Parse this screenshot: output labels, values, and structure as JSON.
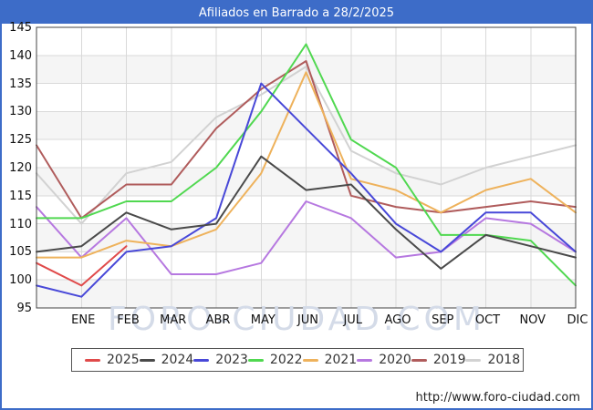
{
  "title": "Afiliados en Barrado a 28/2/2025",
  "watermark": "FORO-CIUDAD.COM",
  "footer": {
    "url": "http://www.foro-ciudad.com"
  },
  "colors": {
    "titlebar": "#3d6cc8",
    "frame_border": "#3d6cc8",
    "grid": "#d9d9d9",
    "spine": "#444444",
    "band": "#f5f5f5",
    "plot_bg": "#ffffff",
    "tick_text": "#111111",
    "watermark": "#d4dbe8"
  },
  "chart_data": {
    "type": "line",
    "title": "Afiliados en Barrado a 28/2/2025",
    "xlabel": "",
    "ylabel": "",
    "categories": [
      "ENE",
      "FEB",
      "MAR",
      "ABR",
      "MAY",
      "JUN",
      "JUL",
      "AGO",
      "SEP",
      "OCT",
      "NOV",
      "DIC"
    ],
    "note": "Each series has a starting value drawn on the left axis followed by 12 monthly values; 2025 data ends in FEB",
    "y_axis": {
      "min": 95,
      "max": 145,
      "tick_step": 5,
      "ticks": [
        95,
        100,
        105,
        110,
        115,
        120,
        125,
        130,
        135,
        140,
        145
      ]
    },
    "grid": true,
    "legend_position": "bottom",
    "series": [
      {
        "name": "2025",
        "color": "#e04a4a",
        "values": [
          103,
          99,
          106
        ]
      },
      {
        "name": "2024",
        "color": "#4a4a4a",
        "values": [
          105,
          106,
          112,
          109,
          110,
          122,
          116,
          117,
          109,
          102,
          108,
          106,
          104
        ]
      },
      {
        "name": "2023",
        "color": "#4848d8",
        "values": [
          99,
          97,
          105,
          106,
          111,
          135,
          127,
          119,
          110,
          105,
          112,
          112,
          105
        ]
      },
      {
        "name": "2022",
        "color": "#50d850",
        "values": [
          111,
          111,
          114,
          114,
          120,
          130,
          142,
          125,
          120,
          108,
          108,
          107,
          99
        ]
      },
      {
        "name": "2021",
        "color": "#eeb25c",
        "values": [
          104,
          104,
          107,
          106,
          109,
          119,
          137,
          118,
          116,
          112,
          116,
          118,
          112
        ]
      },
      {
        "name": "2020",
        "color": "#b678e0",
        "values": [
          113,
          104,
          111,
          101,
          101,
          103,
          114,
          111,
          104,
          105,
          111,
          110,
          105
        ]
      },
      {
        "name": "2019",
        "color": "#b05c5c",
        "values": [
          124,
          111,
          117,
          117,
          127,
          134,
          139,
          115,
          113,
          112,
          113,
          114,
          113
        ]
      },
      {
        "name": "2018",
        "color": "#d2d2d2",
        "values": [
          119,
          110,
          119,
          121,
          129,
          133,
          138,
          123,
          119,
          117,
          120,
          122,
          124
        ]
      }
    ]
  }
}
